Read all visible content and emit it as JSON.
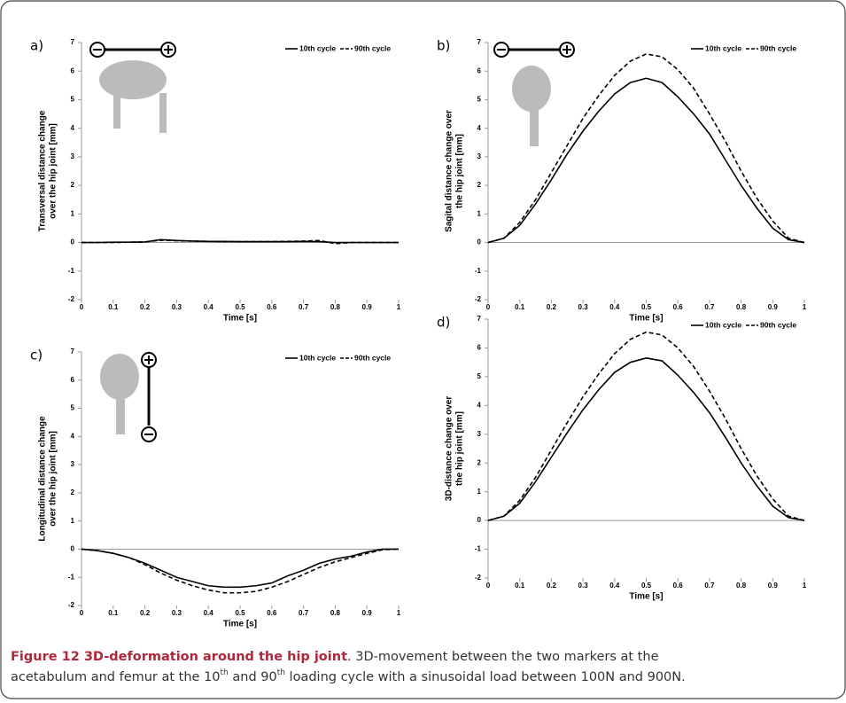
{
  "chart_data": [
    {
      "type": "line",
      "panel": "a)",
      "y_label": [
        "Transversal distance change",
        "over the hip joint [mm]"
      ],
      "x_label": "Time [s]",
      "x": [
        0,
        0.05,
        0.1,
        0.15,
        0.2,
        0.25,
        0.3,
        0.35,
        0.4,
        0.45,
        0.5,
        0.55,
        0.6,
        0.65,
        0.7,
        0.75,
        0.8,
        0.85,
        0.9,
        0.95,
        1
      ],
      "series": [
        {
          "name": "10th cycle",
          "color": "#000000",
          "dash": false,
          "values": [
            0,
            0,
            0.01,
            0.01,
            0.02,
            0.1,
            0.07,
            0.05,
            0.04,
            0.04,
            0.03,
            0.03,
            0.03,
            0.03,
            0.04,
            0.03,
            0,
            0,
            0,
            0,
            0
          ]
        },
        {
          "name": "90th cycle",
          "color": "#000000",
          "dash": true,
          "values": [
            0,
            0,
            0,
            0.01,
            0.02,
            0.08,
            0.06,
            0.05,
            0.04,
            0.03,
            0.03,
            0.03,
            0.03,
            0.04,
            0.05,
            0.07,
            -0.04,
            0,
            0,
            0,
            0
          ]
        }
      ],
      "xlim": [
        0,
        1
      ],
      "xticks": [
        0,
        0.1,
        0.2,
        0.3,
        0.4,
        0.5,
        0.6,
        0.7,
        0.8,
        0.9,
        1
      ],
      "ylim": [
        -2,
        7
      ],
      "yticks": [
        -2,
        -1,
        0,
        1,
        2,
        3,
        4,
        5,
        6,
        7
      ]
    },
    {
      "type": "line",
      "panel": "b)",
      "y_label": [
        "Sagital distance change over",
        "the hip joint [mm]"
      ],
      "x_label": "Time [s]",
      "x": [
        0,
        0.05,
        0.1,
        0.15,
        0.2,
        0.25,
        0.3,
        0.35,
        0.4,
        0.45,
        0.5,
        0.55,
        0.6,
        0.65,
        0.7,
        0.75,
        0.8,
        0.85,
        0.9,
        0.95,
        1
      ],
      "series": [
        {
          "name": "10th cycle",
          "color": "#000000",
          "dash": false,
          "values": [
            0,
            0.15,
            0.6,
            1.35,
            2.2,
            3.1,
            3.9,
            4.6,
            5.2,
            5.6,
            5.75,
            5.6,
            5.1,
            4.5,
            3.8,
            2.9,
            2,
            1.2,
            0.5,
            0.1,
            0
          ]
        },
        {
          "name": "90th cycle",
          "color": "#000000",
          "dash": true,
          "values": [
            0,
            0.15,
            0.7,
            1.5,
            2.45,
            3.4,
            4.35,
            5.15,
            5.85,
            6.35,
            6.6,
            6.5,
            6.05,
            5.4,
            4.5,
            3.55,
            2.5,
            1.55,
            0.75,
            0.15,
            0
          ]
        }
      ],
      "xlim": [
        0,
        1
      ],
      "xticks": [
        0,
        0.1,
        0.2,
        0.3,
        0.4,
        0.5,
        0.6,
        0.7,
        0.8,
        0.9,
        1
      ],
      "ylim": [
        -2,
        7
      ],
      "yticks": [
        -2,
        -1,
        0,
        1,
        2,
        3,
        4,
        5,
        6,
        7
      ]
    },
    {
      "type": "line",
      "panel": "c)",
      "y_label": [
        "Longitudinal distance change",
        "over the hip joint [mm]"
      ],
      "x_label": "Time [s]",
      "x": [
        0,
        0.05,
        0.1,
        0.15,
        0.2,
        0.25,
        0.3,
        0.35,
        0.4,
        0.45,
        0.5,
        0.55,
        0.6,
        0.65,
        0.7,
        0.75,
        0.8,
        0.85,
        0.9,
        0.95,
        1
      ],
      "series": [
        {
          "name": "10th cycle",
          "color": "#000000",
          "dash": false,
          "values": [
            0,
            -0.05,
            -0.15,
            -0.3,
            -0.5,
            -0.75,
            -1,
            -1.15,
            -1.3,
            -1.35,
            -1.35,
            -1.3,
            -1.2,
            -0.95,
            -0.75,
            -0.5,
            -0.35,
            -0.25,
            -0.1,
            0,
            0
          ]
        },
        {
          "name": "90th cycle",
          "color": "#000000",
          "dash": true,
          "values": [
            0,
            -0.05,
            -0.15,
            -0.3,
            -0.55,
            -0.85,
            -1.1,
            -1.3,
            -1.45,
            -1.55,
            -1.55,
            -1.5,
            -1.35,
            -1.15,
            -0.9,
            -0.65,
            -0.45,
            -0.3,
            -0.15,
            -0.02,
            0
          ]
        }
      ],
      "xlim": [
        0,
        1
      ],
      "xticks": [
        0,
        0.1,
        0.2,
        0.3,
        0.4,
        0.5,
        0.6,
        0.7,
        0.8,
        0.9,
        1
      ],
      "ylim": [
        -2,
        7
      ],
      "yticks": [
        -2,
        -1,
        0,
        1,
        2,
        3,
        4,
        5,
        6,
        7
      ]
    },
    {
      "type": "line",
      "panel": "d)",
      "y_label": [
        "3D-distance change over",
        "the hip joint [mm]"
      ],
      "x_label": "Time [s]",
      "x": [
        0,
        0.05,
        0.1,
        0.15,
        0.2,
        0.25,
        0.3,
        0.35,
        0.4,
        0.45,
        0.5,
        0.55,
        0.6,
        0.65,
        0.7,
        0.75,
        0.8,
        0.85,
        0.9,
        0.95,
        1
      ],
      "series": [
        {
          "name": "10th cycle",
          "color": "#000000",
          "dash": false,
          "values": [
            0,
            0.15,
            0.6,
            1.35,
            2.2,
            3.05,
            3.85,
            4.55,
            5.15,
            5.5,
            5.65,
            5.55,
            5.05,
            4.45,
            3.75,
            2.9,
            2,
            1.2,
            0.5,
            0.1,
            0
          ]
        },
        {
          "name": "90th cycle",
          "color": "#000000",
          "dash": true,
          "values": [
            0,
            0.15,
            0.7,
            1.5,
            2.45,
            3.4,
            4.3,
            5.1,
            5.8,
            6.3,
            6.55,
            6.45,
            6,
            5.35,
            4.5,
            3.55,
            2.5,
            1.55,
            0.75,
            0.15,
            0
          ]
        }
      ],
      "xlim": [
        0,
        1
      ],
      "xticks": [
        0,
        0.1,
        0.2,
        0.3,
        0.4,
        0.5,
        0.6,
        0.7,
        0.8,
        0.9,
        1
      ],
      "ylim": [
        -2,
        7
      ],
      "yticks": [
        -2,
        -1,
        0,
        1,
        2,
        3,
        4,
        5,
        6,
        7
      ]
    }
  ],
  "caption": {
    "label": "Figure 12 3D-deformation around the hip joint",
    "text": [
      ". 3D-movement between the two markers at the",
      "acetabulum and femur at the 10",
      "th",
      " and 90",
      "th",
      " loading cycle with a sinusoidal load between 100N and 900N."
    ]
  }
}
